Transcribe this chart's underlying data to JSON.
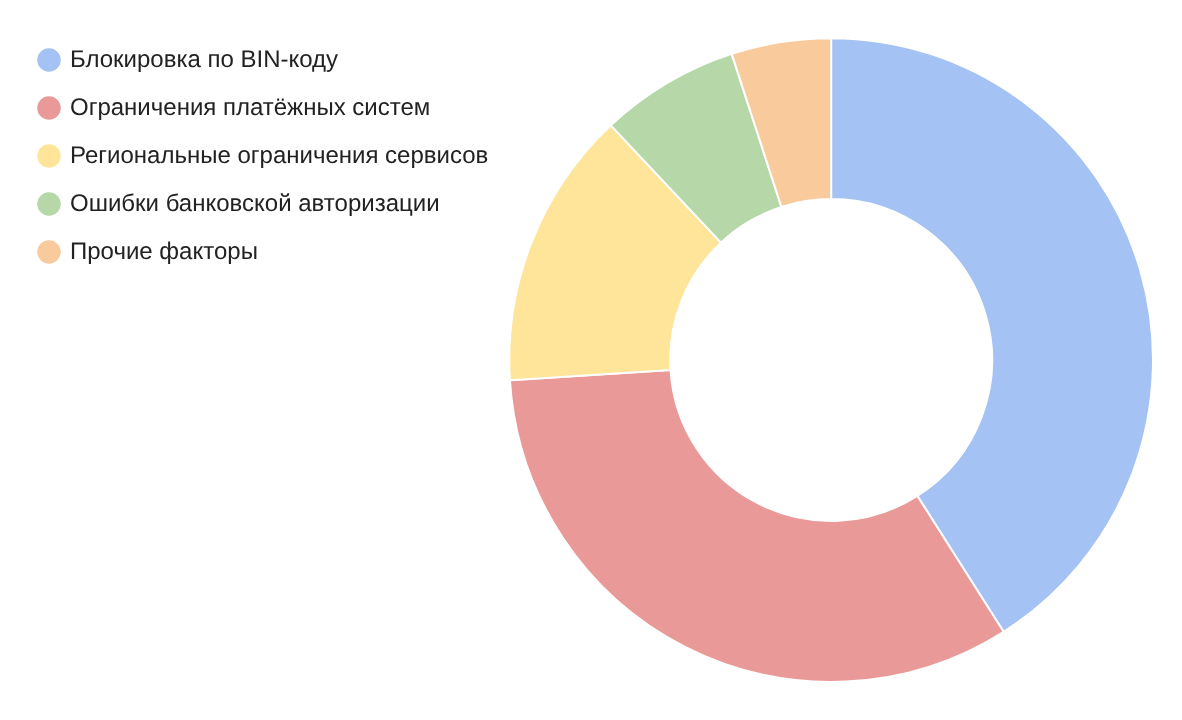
{
  "chart_data": {
    "type": "donut",
    "categories": [
      "Блокировка по BIN-коду",
      "Ограничения платёжных систем",
      "Региональные ограничения сервисов",
      "Ошибки банковской авторизации",
      "Прочие факторы"
    ],
    "values": [
      41,
      33,
      14,
      7,
      5
    ],
    "colors": [
      "#a4c2f4",
      "#ea9999",
      "#ffe599",
      "#b6d7a8",
      "#f9cb9c"
    ],
    "legend": "left"
  }
}
